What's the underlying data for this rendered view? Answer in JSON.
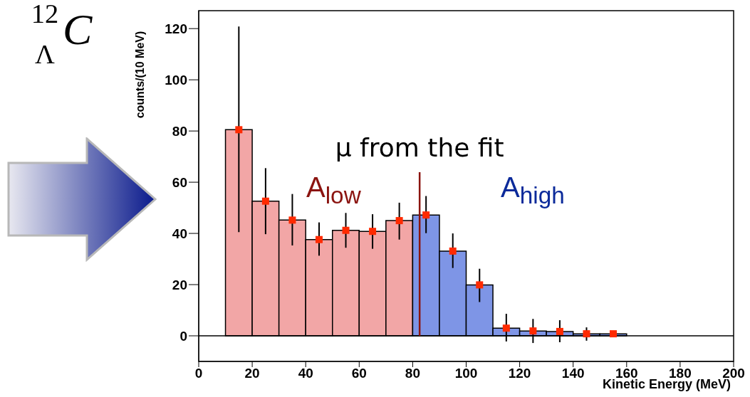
{
  "chart_data": {
    "type": "histogram",
    "xlabel": "Kinetic Energy (MeV)",
    "ylabel": "counts/(10 MeV)",
    "bins": [
      10,
      20,
      30,
      40,
      50,
      60,
      70,
      80,
      90,
      100,
      110,
      120,
      130,
      140,
      150,
      160
    ],
    "values": [
      80.5,
      52.6,
      45.2,
      37.6,
      41.2,
      40.8,
      45,
      47.2,
      33.1,
      19.9,
      3,
      1.9,
      1.7,
      0.8,
      0.8
    ],
    "colors": [
      "#f2a6a6",
      "#f2a6a6",
      "#f2a6a6",
      "#f2a6a6",
      "#f2a6a6",
      "#f2a6a6",
      "#f2a6a6",
      "#7e95e6",
      "#7e95e6",
      "#7e95e6",
      "#7e95e6",
      "#7e95e6",
      "#7e95e6",
      "#7e95e6",
      "#7e95e6"
    ],
    "series": [
      {
        "type": "scatter",
        "color": "#ff2a00",
        "marker": "square",
        "x": [
          15,
          25,
          35,
          45,
          55,
          65,
          75,
          85,
          95,
          105,
          115,
          125,
          135,
          145,
          155
        ],
        "values": [
          80.5,
          52.6,
          45.2,
          37.6,
          41.2,
          40.8,
          45,
          47.2,
          33.1,
          19.9,
          3,
          1.9,
          1.7,
          0.8,
          0.8
        ],
        "errors": [
          [
            40.5,
            120.8
          ],
          [
            39.7,
            65.5
          ],
          [
            35.3,
            55.4
          ],
          [
            31.3,
            44.3
          ],
          [
            34.4,
            48
          ],
          [
            34,
            47.5
          ],
          [
            37.6,
            52
          ],
          [
            40.1,
            54.6
          ],
          [
            26.5,
            40
          ],
          [
            13.2,
            26.2
          ],
          [
            -2.2,
            8.6
          ],
          [
            -2.8,
            6.6
          ],
          [
            -2.5,
            6.1
          ],
          [
            -1.9,
            3.3
          ],
          null
        ]
      }
    ],
    "xlim": [
      0,
      200
    ],
    "xticks": [
      0,
      20,
      40,
      60,
      80,
      100,
      120,
      140,
      160,
      180,
      200
    ],
    "ylim": [
      -10,
      127
    ],
    "yticks": [
      0,
      20,
      40,
      60,
      80,
      100,
      120
    ],
    "grid": false,
    "ref_lines": [
      {
        "axis": "y",
        "value": 0,
        "color": "#000000"
      },
      {
        "axis": "x",
        "value": 82.6,
        "label": "μ from the fit",
        "color": "#8b1410"
      }
    ],
    "annotations": [
      "A$_{low}$",
      "A$_{high}$",
      "$^{12}$$_{Λ}$C"
    ]
  }
}
